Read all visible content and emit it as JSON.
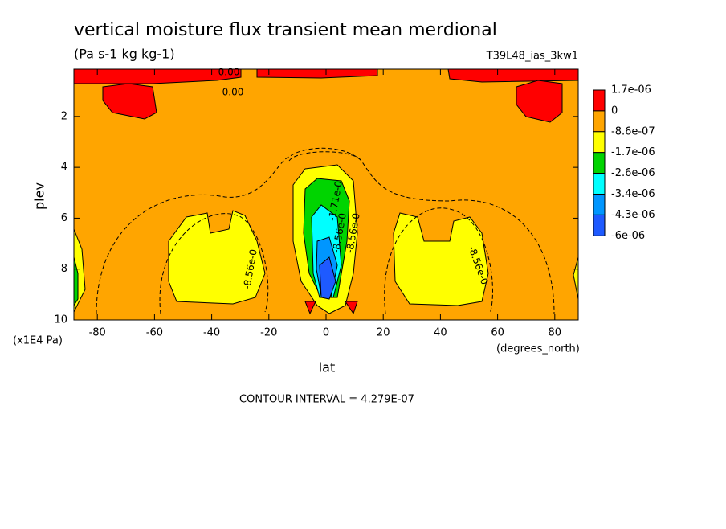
{
  "chart_data": {
    "type": "contour",
    "title": "vertical moisture flux transient mean merdional",
    "subtitle": "(Pa s-1 kg kg-1)",
    "run_label": "T39L48_ias_3kw1",
    "x_label": "lat",
    "x_units": "(degrees_north)",
    "y_label": "plev",
    "y_units": "(x1E4 Pa)",
    "footer": "CONTOUR INTERVAL = 4.279E-07",
    "xlim": [
      -88.2,
      88.2
    ],
    "xticks": [
      -80,
      -60,
      -40,
      -20,
      0,
      20,
      40,
      60,
      80
    ],
    "ylim": [
      10,
      0.14
    ],
    "yticks": [
      2,
      4,
      6,
      8,
      10
    ],
    "levels": [
      {
        "value": 1.7e-06,
        "label": "1.7e-06"
      },
      0,
      {
        "value": -8.6e-07,
        "label": "-8.6e-07"
      },
      {
        "value": -1.7e-06,
        "label": "-1.7e-06"
      },
      {
        "value": -2.6e-06,
        "label": "-2.6e-06"
      },
      {
        "value": -3.4e-06,
        "label": "-3.4e-06"
      },
      {
        "value": -4.3e-06,
        "label": "-4.3e-06"
      },
      {
        "value": -6e-06,
        "label": "-6e-06"
      }
    ],
    "fill_colors": [
      "#ff0000",
      "#ffa500",
      "#ffff00",
      "#00d400",
      "#00ffff",
      "#0096ff",
      "#1e5aff"
    ],
    "contour_labels": [
      "0.00",
      "0.00",
      "-8.56e-0",
      "-1.71e-0",
      "-8.56e-0",
      "-8.56e-0",
      "-8.56e-0"
    ]
  }
}
